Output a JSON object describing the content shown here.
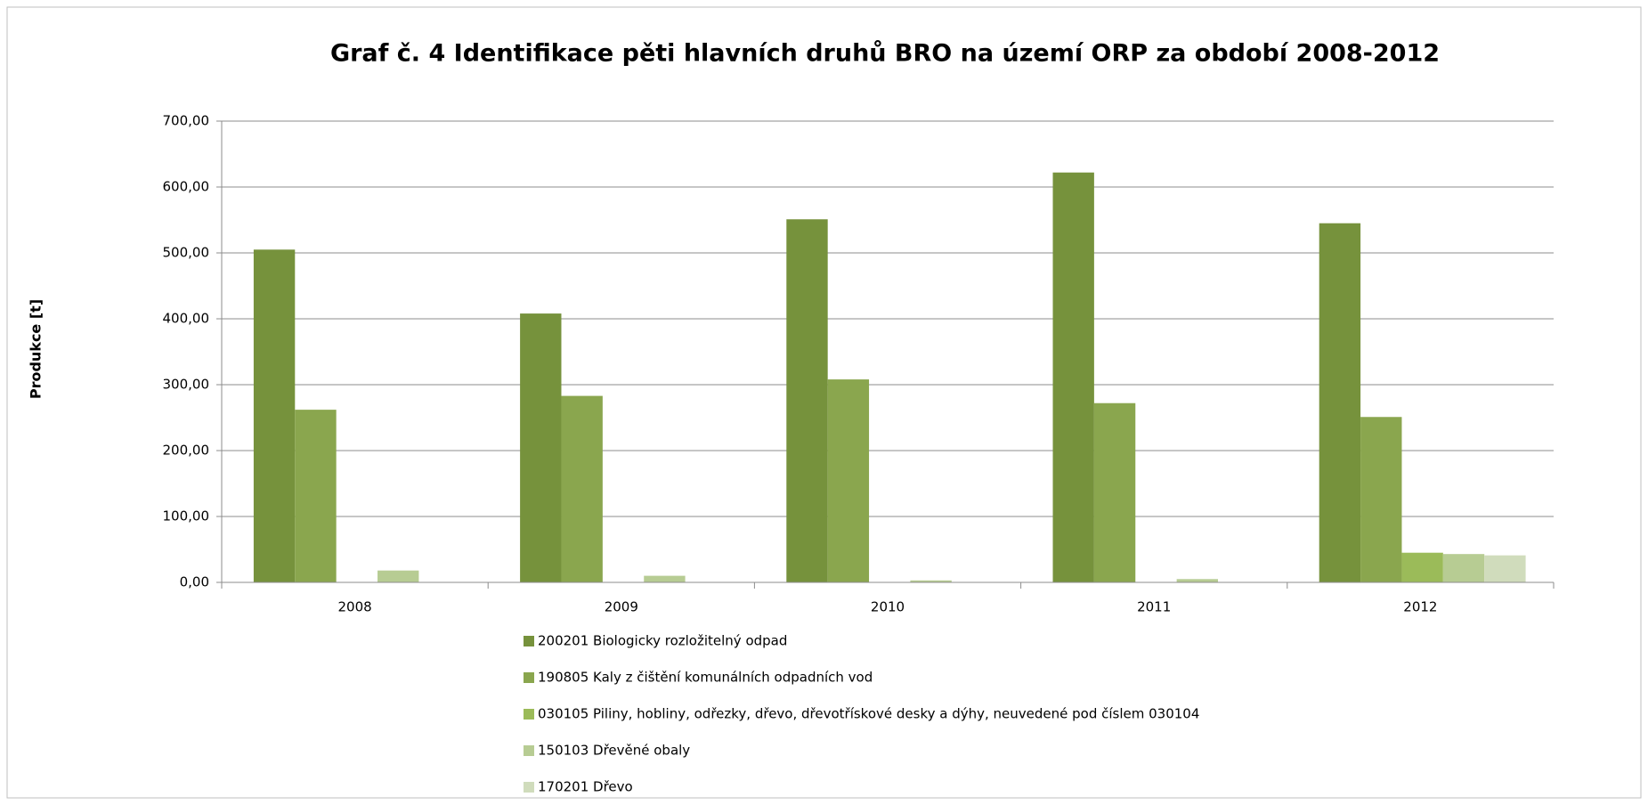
{
  "chart_data": {
    "type": "bar",
    "title": "Graf č. 4 Identifikace pěti hlavních druhů BRO na území ORP za období 2008-2012",
    "y_label": "Produkce [t]",
    "categories": [
      "2008",
      "2009",
      "2010",
      "2011",
      "2012"
    ],
    "series": [
      {
        "name": "200201 Biologicky rozložitelný odpad",
        "color": "#76923c",
        "values": [
          505,
          408,
          551,
          622,
          545
        ]
      },
      {
        "name": "190805 Kaly z čištění komunálních odpadních vod",
        "color": "#8aa64e",
        "values": [
          262,
          283,
          308,
          272,
          251
        ]
      },
      {
        "name": "030105 Piliny, hobliny, odřezky, dřevo, dřevotřískové desky a dýhy, neuvedené pod číslem 030104",
        "color": "#9bbb59",
        "values": [
          0,
          0,
          0,
          0,
          45
        ]
      },
      {
        "name": "150103 Dřevěné obaly",
        "color": "#b7cc93",
        "values": [
          18,
          10,
          3,
          5,
          43
        ]
      },
      {
        "name": "170201 Dřevo",
        "color": "#d0dcbc",
        "values": [
          0,
          0,
          0,
          0,
          41
        ]
      }
    ],
    "ylim": [
      0,
      700
    ],
    "yticks": [
      {
        "value": 0,
        "label": "0,00"
      },
      {
        "value": 100,
        "label": "100,00"
      },
      {
        "value": 200,
        "label": "200,00"
      },
      {
        "value": 300,
        "label": "300,00"
      },
      {
        "value": 400,
        "label": "400,00"
      },
      {
        "value": 500,
        "label": "500,00"
      },
      {
        "value": 600,
        "label": "600,00"
      },
      {
        "value": 700,
        "label": "700,00"
      }
    ],
    "grid": true,
    "legend": "bottom"
  }
}
